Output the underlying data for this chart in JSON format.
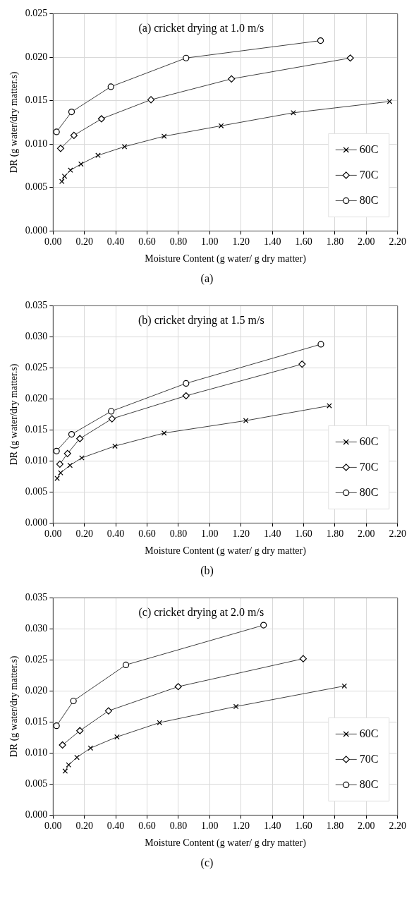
{
  "chart_data": [
    {
      "type": "line",
      "title": "(a) cricket drying at 1.0 m/s",
      "xlabel": "Moisture Content (g water/ g dry matter)",
      "ylabel": "DR (g water/dry matter.s)",
      "annotations": [
        "(a)"
      ],
      "xlim": [
        0,
        2.2
      ],
      "xticks": [
        {
          "value": 0,
          "label": "0.00"
        },
        {
          "value": 0.2,
          "label": "0.20"
        },
        {
          "value": 0.4,
          "label": "0.40"
        },
        {
          "value": 0.6,
          "label": "0.60"
        },
        {
          "value": 0.8,
          "label": "0.80"
        },
        {
          "value": 1.0,
          "label": "1.00"
        },
        {
          "value": 1.2,
          "label": "1.20"
        },
        {
          "value": 1.4,
          "label": "1.40"
        },
        {
          "value": 1.6,
          "label": "1.60"
        },
        {
          "value": 1.8,
          "label": "1.80"
        },
        {
          "value": 2.0,
          "label": "2.00"
        },
        {
          "value": 2.2,
          "label": "2.20"
        }
      ],
      "ylim": [
        0,
        0.025
      ],
      "yticks": [
        {
          "value": 0,
          "label": "0.000"
        },
        0.005,
        {
          "value": 0.01,
          "label": "0.010"
        },
        0.015,
        {
          "value": 0.02,
          "label": "0.020"
        },
        0.025
      ],
      "grid": true,
      "legend": "bottom right",
      "line_style": "solid",
      "series": [
        {
          "name": "60C",
          "color": "#404040",
          "marker": "cross",
          "x": [
            0.056,
            0.073,
            0.111,
            0.178,
            0.287,
            0.456,
            0.709,
            1.073,
            1.534,
            2.149
          ],
          "values": [
            0.0057,
            0.0063,
            0.007,
            0.0077,
            0.0087,
            0.0097,
            0.0109,
            0.0121,
            0.0136,
            0.0149
          ]
        },
        {
          "name": "70C",
          "color": "#404040",
          "marker": "diamond",
          "x": [
            0.048,
            0.133,
            0.309,
            0.625,
            1.139,
            1.898
          ],
          "values": [
            0.0095,
            0.011,
            0.0129,
            0.0151,
            0.0175,
            0.0199
          ]
        },
        {
          "name": "80C",
          "color": "#404040",
          "marker": "circle",
          "x": [
            0.022,
            0.118,
            0.369,
            0.849,
            1.708
          ],
          "values": [
            0.0114,
            0.0137,
            0.0166,
            0.0199,
            0.0219
          ]
        }
      ]
    },
    {
      "type": "line",
      "title": "(b) cricket drying at 1.5 m/s",
      "xlabel": "Moisture Content (g water/ g dry matter)",
      "ylabel": "DR (g water/dry matter.s)",
      "annotations": [
        "(b)"
      ],
      "xlim": [
        0,
        2.2
      ],
      "xticks": [
        {
          "value": 0,
          "label": "0.00"
        },
        {
          "value": 0.2,
          "label": "0.20"
        },
        {
          "value": 0.4,
          "label": "0.40"
        },
        {
          "value": 0.6,
          "label": "0.60"
        },
        {
          "value": 0.8,
          "label": "0.80"
        },
        {
          "value": 1.0,
          "label": "1.00"
        },
        {
          "value": 1.2,
          "label": "1.20"
        },
        {
          "value": 1.4,
          "label": "1.40"
        },
        {
          "value": 1.6,
          "label": "1.60"
        },
        {
          "value": 1.8,
          "label": "1.80"
        },
        {
          "value": 2.0,
          "label": "2.00"
        },
        {
          "value": 2.2,
          "label": "2.20"
        }
      ],
      "ylim": [
        0,
        0.035
      ],
      "yticks": [
        {
          "value": 0,
          "label": "0.000"
        },
        0.005,
        {
          "value": 0.01,
          "label": "0.010"
        },
        0.015,
        {
          "value": 0.02,
          "label": "0.020"
        },
        0.025,
        {
          "value": 0.03,
          "label": "0.030"
        },
        0.035
      ],
      "grid": true,
      "legend": "bottom right",
      "line_style": "solid",
      "series": [
        {
          "name": "60C",
          "color": "#404040",
          "marker": "cross",
          "x": [
            0.026,
            0.048,
            0.108,
            0.183,
            0.395,
            0.709,
            1.231,
            1.764
          ],
          "values": [
            0.0072,
            0.0081,
            0.0093,
            0.0105,
            0.0124,
            0.0145,
            0.0165,
            0.0189
          ]
        },
        {
          "name": "70C",
          "color": "#404040",
          "marker": "diamond",
          "x": [
            0.043,
            0.092,
            0.171,
            0.376,
            0.849,
            1.59
          ],
          "values": [
            0.0095,
            0.0112,
            0.0136,
            0.0168,
            0.0205,
            0.0256
          ]
        },
        {
          "name": "80C",
          "color": "#404040",
          "marker": "circle",
          "x": [
            0.022,
            0.118,
            0.371,
            0.849,
            1.71
          ],
          "values": [
            0.0116,
            0.0143,
            0.018,
            0.0225,
            0.0288
          ]
        }
      ]
    },
    {
      "type": "line",
      "title": "(c) cricket drying at 2.0 m/s",
      "xlabel": "Moisture Content (g water/ g dry matter)",
      "ylabel": "DR (g water/dry matter.s)",
      "annotations": [
        "(c)"
      ],
      "xlim": [
        0,
        2.2
      ],
      "xticks": [
        {
          "value": 0,
          "label": "0.00"
        },
        {
          "value": 0.2,
          "label": "0.20"
        },
        {
          "value": 0.4,
          "label": "0.40"
        },
        {
          "value": 0.6,
          "label": "0.60"
        },
        {
          "value": 0.8,
          "label": "0.80"
        },
        {
          "value": 1.0,
          "label": "1.00"
        },
        {
          "value": 1.2,
          "label": "1.20"
        },
        {
          "value": 1.4,
          "label": "1.40"
        },
        {
          "value": 1.6,
          "label": "1.60"
        },
        {
          "value": 1.8,
          "label": "1.80"
        },
        {
          "value": 2.0,
          "label": "2.00"
        },
        {
          "value": 2.2,
          "label": "2.20"
        }
      ],
      "ylim": [
        0,
        0.035
      ],
      "yticks": [
        {
          "value": 0,
          "label": "0.000"
        },
        0.005,
        {
          "value": 0.01,
          "label": "0.010"
        },
        0.015,
        {
          "value": 0.02,
          "label": "0.020"
        },
        0.025,
        {
          "value": 0.03,
          "label": "0.030"
        },
        0.035
      ],
      "grid": true,
      "legend": "bottom right",
      "line_style": "solid",
      "series": [
        {
          "name": "60C",
          "color": "#404040",
          "marker": "cross",
          "x": [
            0.077,
            0.099,
            0.152,
            0.239,
            0.408,
            0.68,
            1.168,
            1.86
          ],
          "values": [
            0.0071,
            0.0081,
            0.0093,
            0.0108,
            0.0126,
            0.0149,
            0.0175,
            0.0208
          ]
        },
        {
          "name": "70C",
          "color": "#404040",
          "marker": "diamond",
          "x": [
            0.06,
            0.171,
            0.354,
            0.799,
            1.597
          ],
          "values": [
            0.0113,
            0.0136,
            0.0168,
            0.0207,
            0.0252
          ]
        },
        {
          "name": "80C",
          "color": "#404040",
          "marker": "circle",
          "x": [
            0.022,
            0.13,
            0.465,
            1.344
          ],
          "values": [
            0.0144,
            0.0184,
            0.0242,
            0.0306
          ]
        }
      ]
    }
  ]
}
